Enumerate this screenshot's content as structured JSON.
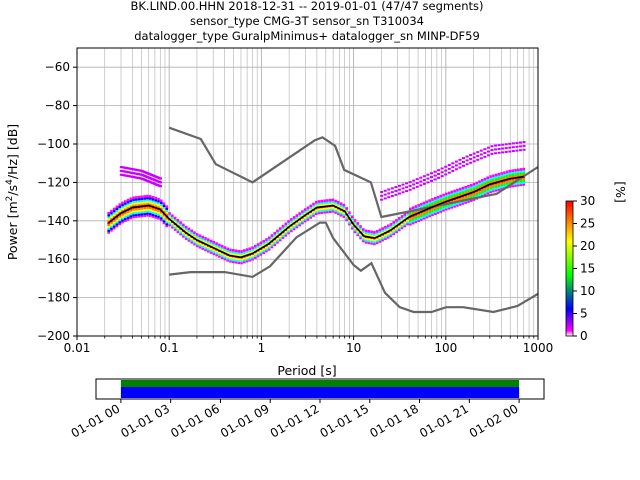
{
  "chart_data": [
    {
      "type": "heatmap",
      "title_lines": [
        "BK.LIND.00.HHN   2018-12-31 -- 2019-01-01  (47/47 segments)",
        "sensor_type CMG-3T sensor_sn T310034",
        "datalogger_type GuralpMinimus+ datalogger_sn MINP-DF59"
      ],
      "xlabel": "Period [s]",
      "ylabel_parts": [
        "Power [m",
        "2",
        "/s",
        "4",
        "/Hz] [dB]"
      ],
      "x_scale": "log",
      "xlim": [
        0.01,
        1000
      ],
      "ylim": [
        -200,
        -50
      ],
      "grid": true,
      "xticks": [
        {
          "value": 0.01,
          "label": "0.01"
        },
        {
          "value": 0.1,
          "label": "0.1"
        },
        {
          "value": 1,
          "label": "1"
        },
        {
          "value": 10,
          "label": "10"
        },
        {
          "value": 100,
          "label": "100"
        },
        {
          "value": 1000,
          "label": "1000"
        }
      ],
      "yticks": [
        {
          "value": -60,
          "label": "−60"
        },
        {
          "value": -80,
          "label": "−80"
        },
        {
          "value": -100,
          "label": "−100"
        },
        {
          "value": -120,
          "label": "−120"
        },
        {
          "value": -140,
          "label": "−140"
        },
        {
          "value": -160,
          "label": "−160"
        },
        {
          "value": -180,
          "label": "−180"
        },
        {
          "value": -200,
          "label": "−200"
        }
      ],
      "colorbar": {
        "unit_label": "[%]",
        "range": [
          0,
          30
        ],
        "ticks": [
          {
            "value": 0,
            "label": "0"
          },
          {
            "value": 5,
            "label": "5"
          },
          {
            "value": 10,
            "label": "10"
          },
          {
            "value": 15,
            "label": "15"
          },
          {
            "value": 20,
            "label": "20"
          },
          {
            "value": 25,
            "label": "25"
          },
          {
            "value": 30,
            "label": "30"
          }
        ],
        "colors": [
          "#ffffff",
          "#ff00ff",
          "#0000ff",
          "#00ff00",
          "#ffff00",
          "#ff0000"
        ]
      },
      "noise_model_high": [
        [
          0.1,
          -91.5
        ],
        [
          0.22,
          -97.4
        ],
        [
          0.32,
          -110.5
        ],
        [
          0.8,
          -120
        ],
        [
          3.8,
          -98
        ],
        [
          4.6,
          -96.5
        ],
        [
          6.3,
          -101
        ],
        [
          7.9,
          -113.5
        ],
        [
          15.4,
          -120
        ],
        [
          20,
          -138
        ],
        [
          354.8,
          -126
        ],
        [
          1000,
          -112
        ]
      ],
      "noise_model_low": [
        [
          0.1,
          -168
        ],
        [
          0.17,
          -166.7
        ],
        [
          0.4,
          -166.7
        ],
        [
          0.8,
          -169.2
        ],
        [
          1.24,
          -163.7
        ],
        [
          2.4,
          -148.6
        ],
        [
          4.3,
          -141
        ],
        [
          5,
          -141
        ],
        [
          6,
          -149
        ],
        [
          10,
          -163
        ],
        [
          12,
          -166
        ],
        [
          15.6,
          -162.1
        ],
        [
          21.9,
          -177.5
        ],
        [
          31.6,
          -185
        ],
        [
          45,
          -187.5
        ],
        [
          70,
          -187.5
        ],
        [
          101,
          -185
        ],
        [
          154,
          -185
        ],
        [
          328,
          -187.5
        ],
        [
          600,
          -184.4
        ],
        [
          1000,
          -178
        ]
      ],
      "mean_curve": [
        [
          0.022,
          -141
        ],
        [
          0.03,
          -136
        ],
        [
          0.04,
          -133
        ],
        [
          0.06,
          -132
        ],
        [
          0.08,
          -134
        ],
        [
          0.1,
          -139
        ],
        [
          0.15,
          -146
        ],
        [
          0.2,
          -150
        ],
        [
          0.3,
          -154
        ],
        [
          0.45,
          -158
        ],
        [
          0.6,
          -159
        ],
        [
          0.8,
          -157
        ],
        [
          1.2,
          -152
        ],
        [
          2,
          -143
        ],
        [
          3,
          -137
        ],
        [
          4,
          -133
        ],
        [
          6,
          -132
        ],
        [
          8,
          -135
        ],
        [
          10,
          -142
        ],
        [
          13,
          -148
        ],
        [
          17,
          -149
        ],
        [
          25,
          -145
        ],
        [
          40,
          -138
        ],
        [
          70,
          -133
        ],
        [
          100,
          -130
        ],
        [
          200,
          -125
        ],
        [
          300,
          -121
        ],
        [
          500,
          -118
        ],
        [
          700,
          -117
        ]
      ],
      "purple_upper_curve": [
        [
          0.03,
          -114
        ],
        [
          0.05,
          -116
        ],
        [
          0.08,
          -120
        ]
      ],
      "purple_upper_curve2": [
        [
          20,
          -127
        ],
        [
          40,
          -122
        ],
        [
          80,
          -116
        ],
        [
          160,
          -109
        ],
        [
          320,
          -103
        ],
        [
          700,
          -101
        ]
      ]
    },
    {
      "type": "timeline",
      "xticks": [
        "01-01 00",
        "01-01 03",
        "01-01 06",
        "01-01 09",
        "01-01 12",
        "01-01 15",
        "01-01 18",
        "01-01 21",
        "01-02 00"
      ],
      "range_hours": [
        -1.5,
        25.5
      ],
      "segments": [
        {
          "start_h": 0,
          "end_h": 24,
          "color": "#008000",
          "row": "top"
        },
        {
          "start_h": 0,
          "end_h": 24,
          "color": "#0000ff",
          "row": "bottom"
        }
      ]
    }
  ]
}
